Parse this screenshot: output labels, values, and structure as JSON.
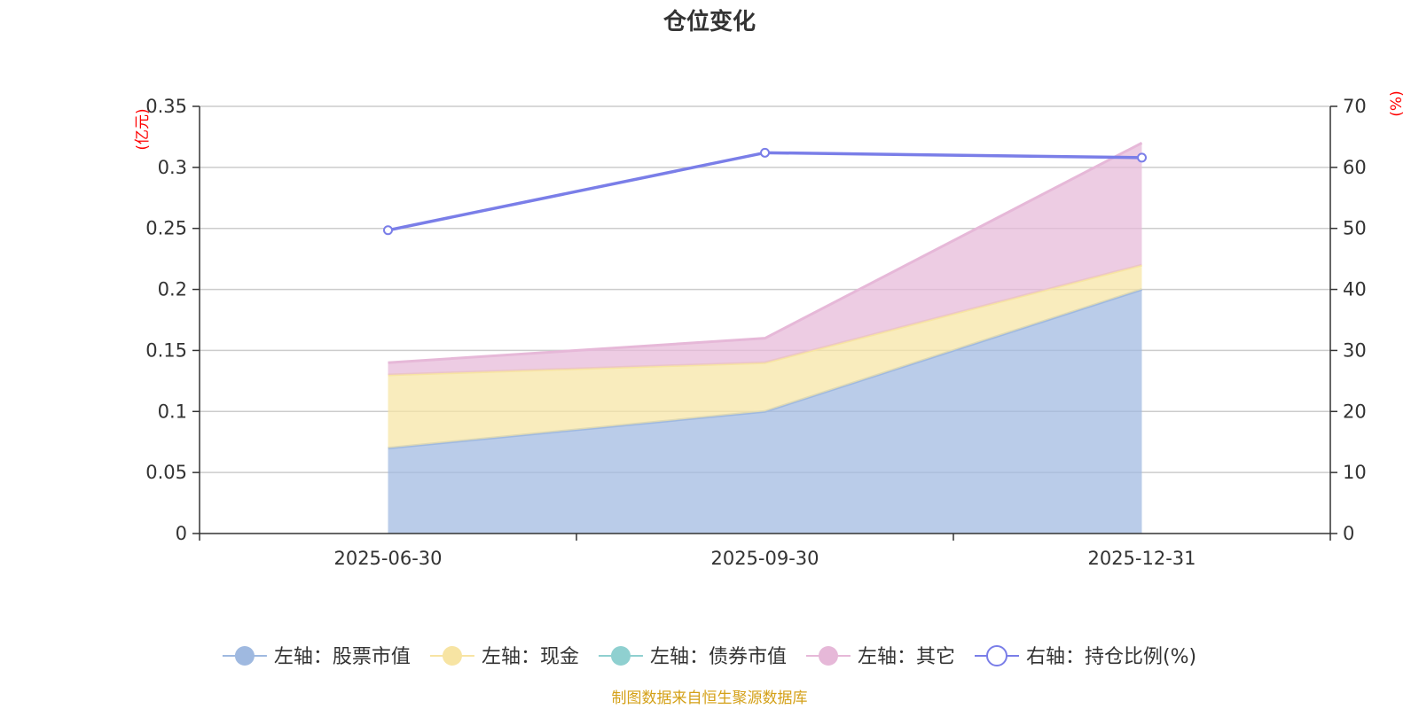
{
  "chart_data": {
    "type": "area",
    "title": "仓位变化",
    "categories": [
      "2025-06-30",
      "2025-09-30",
      "2025-12-31"
    ],
    "left_axis": {
      "name": "(亿元)",
      "ylim": [
        0,
        0.35
      ],
      "ticks": [
        "0",
        "0.05",
        "0.1",
        "0.15",
        "0.2",
        "0.25",
        "0.3",
        "0.35"
      ],
      "tick_values": [
        0,
        0.05,
        0.1,
        0.15,
        0.2,
        0.25,
        0.3,
        0.35
      ]
    },
    "right_axis": {
      "name": "(%)",
      "ylim": [
        0,
        70
      ],
      "ticks": [
        "0",
        "10",
        "20",
        "30",
        "40",
        "50",
        "60",
        "70"
      ],
      "tick_values": [
        0,
        10,
        20,
        30,
        40,
        50,
        60,
        70
      ]
    },
    "grid": true,
    "stacked_series": [
      {
        "name": "左轴：股票市值",
        "axis": "left",
        "values": [
          0.07,
          0.1,
          0.2
        ],
        "color": "#9fb9e0"
      },
      {
        "name": "左轴：现金",
        "axis": "left",
        "values": [
          0.06,
          0.04,
          0.02
        ],
        "color": "#f7e4a3"
      },
      {
        "name": "左轴：债券市值",
        "axis": "left",
        "values": [
          0,
          0,
          0
        ],
        "color": "#8fd0d0"
      },
      {
        "name": "左轴：其它",
        "axis": "left",
        "values": [
          0.01,
          0.02,
          0.1
        ],
        "color": "#e6b8d8"
      }
    ],
    "line_series": [
      {
        "name": "右轴：持仓比例(%)",
        "axis": "right",
        "values": [
          49.7,
          62.4,
          61.6
        ],
        "color": "#7a7ee8"
      }
    ],
    "legend_position": "bottom",
    "axis_label_color": "#ff0000"
  },
  "legend": {
    "items": [
      {
        "label": "左轴：股票市值",
        "icon": "filled-circle-icon",
        "color": "#9fb9e0"
      },
      {
        "label": "左轴：现金",
        "icon": "filled-circle-icon",
        "color": "#f7e4a3"
      },
      {
        "label": "左轴：债券市值",
        "icon": "filled-circle-icon",
        "color": "#8fd0d0"
      },
      {
        "label": "左轴：其它",
        "icon": "filled-circle-icon",
        "color": "#e6b8d8"
      },
      {
        "label": "右轴：持仓比例(%)",
        "icon": "hollow-circle-icon",
        "color": "#7a7ee8"
      }
    ]
  },
  "source": {
    "text": "制图数据来自恒生聚源数据库",
    "color": "#d4a017"
  }
}
